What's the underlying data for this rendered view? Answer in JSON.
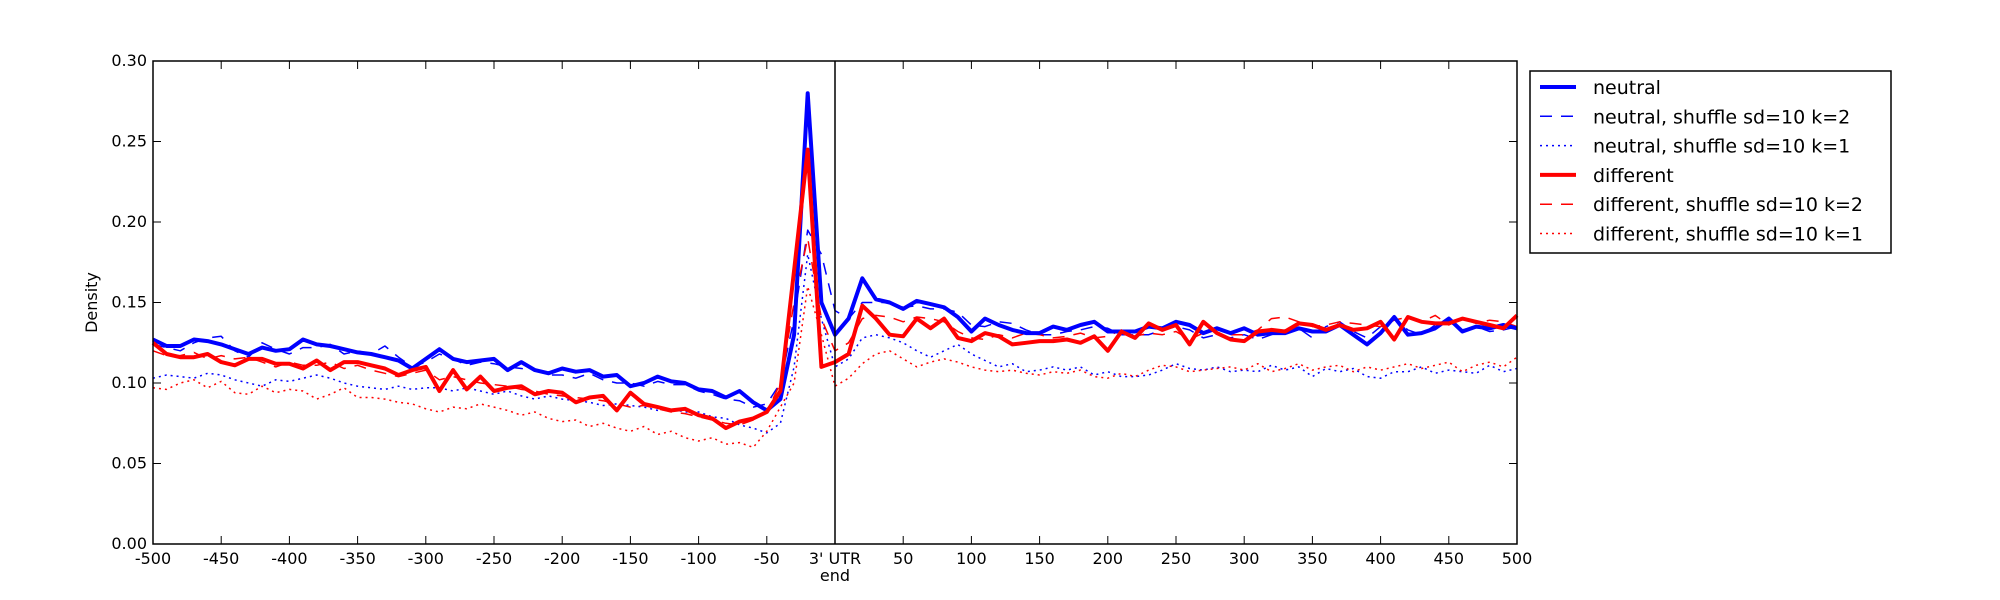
{
  "chart_data": {
    "type": "line",
    "title": "",
    "xlabel": "",
    "ylabel": "Density",
    "xlim": [
      -500,
      500
    ],
    "ylim": [
      0,
      0.3
    ],
    "grid": false,
    "legend_position": "outside-right-top",
    "xticks": [
      -500,
      -450,
      -400,
      -350,
      -300,
      -250,
      -200,
      -150,
      -100,
      -50,
      0,
      50,
      100,
      150,
      200,
      250,
      300,
      350,
      400,
      450,
      500
    ],
    "xtick_labels": [
      "-500",
      "-450",
      "-400",
      "-350",
      "-300",
      "-250",
      "-200",
      "-150",
      "-100",
      "-50",
      "",
      "50",
      "100",
      "150",
      "200",
      "250",
      "300",
      "350",
      "400",
      "450",
      "500"
    ],
    "yticks": [
      0,
      0.05,
      0.1,
      0.15,
      0.2,
      0.25,
      0.3
    ],
    "ytick_labels": [
      "0.00",
      "0.05",
      "0.10",
      "0.15",
      "0.20",
      "0.25",
      "0.30"
    ],
    "marker": {
      "x": 0,
      "label_line1": "3' UTR",
      "label_line2": "end"
    },
    "x": [
      -500,
      -490,
      -480,
      -470,
      -460,
      -450,
      -440,
      -430,
      -420,
      -410,
      -400,
      -390,
      -380,
      -370,
      -360,
      -350,
      -340,
      -330,
      -320,
      -310,
      -300,
      -290,
      -280,
      -270,
      -260,
      -250,
      -240,
      -230,
      -220,
      -210,
      -200,
      -190,
      -180,
      -170,
      -160,
      -150,
      -140,
      -130,
      -120,
      -110,
      -100,
      -90,
      -80,
      -70,
      -60,
      -50,
      -40,
      -30,
      -20,
      -10,
      0,
      10,
      20,
      30,
      40,
      50,
      60,
      70,
      80,
      90,
      100,
      110,
      120,
      130,
      140,
      150,
      160,
      170,
      180,
      190,
      200,
      210,
      220,
      230,
      240,
      250,
      260,
      270,
      280,
      290,
      300,
      310,
      320,
      330,
      340,
      350,
      360,
      370,
      380,
      390,
      400,
      410,
      420,
      430,
      440,
      450,
      460,
      470,
      480,
      490,
      500
    ],
    "series": [
      {
        "name": "neutral",
        "color": "#0000ff",
        "style": "solid",
        "width": 4,
        "values": [
          0.127,
          0.123,
          0.123,
          0.127,
          0.126,
          0.124,
          0.121,
          0.118,
          0.122,
          0.12,
          0.121,
          0.127,
          0.124,
          0.123,
          0.121,
          0.119,
          0.118,
          0.116,
          0.114,
          0.109,
          0.115,
          0.121,
          0.115,
          0.113,
          0.114,
          0.115,
          0.108,
          0.113,
          0.108,
          0.106,
          0.109,
          0.107,
          0.108,
          0.104,
          0.105,
          0.098,
          0.1,
          0.104,
          0.101,
          0.1,
          0.096,
          0.095,
          0.091,
          0.095,
          0.088,
          0.083,
          0.09,
          0.13,
          0.28,
          0.15,
          0.13,
          0.14,
          0.165,
          0.152,
          0.15,
          0.146,
          0.151,
          0.149,
          0.147,
          0.141,
          0.132,
          0.14,
          0.136,
          0.133,
          0.131,
          0.131,
          0.135,
          0.133,
          0.136,
          0.138,
          0.132,
          0.132,
          0.132,
          0.135,
          0.134,
          0.138,
          0.136,
          0.131,
          0.134,
          0.131,
          0.134,
          0.13,
          0.131,
          0.131,
          0.134,
          0.132,
          0.132,
          0.136,
          0.13,
          0.124,
          0.131,
          0.141,
          0.13,
          0.131,
          0.134,
          0.14,
          0.132,
          0.135,
          0.134,
          0.136,
          0.134
        ]
      },
      {
        "name": "neutral, shuffle sd=10 k=2",
        "color": "#0000ff",
        "style": "dashed",
        "width": 1.5,
        "values": [
          0.124,
          0.122,
          0.12,
          0.125,
          0.128,
          0.129,
          0.12,
          0.116,
          0.125,
          0.121,
          0.118,
          0.122,
          0.122,
          0.124,
          0.118,
          0.12,
          0.118,
          0.123,
          0.116,
          0.11,
          0.113,
          0.118,
          0.115,
          0.111,
          0.113,
          0.112,
          0.11,
          0.109,
          0.108,
          0.105,
          0.105,
          0.103,
          0.106,
          0.102,
          0.1,
          0.1,
          0.098,
          0.101,
          0.099,
          0.099,
          0.095,
          0.093,
          0.09,
          0.089,
          0.085,
          0.087,
          0.1,
          0.14,
          0.195,
          0.18,
          0.145,
          0.14,
          0.15,
          0.15,
          0.15,
          0.147,
          0.148,
          0.146,
          0.146,
          0.144,
          0.136,
          0.135,
          0.138,
          0.137,
          0.133,
          0.13,
          0.13,
          0.132,
          0.133,
          0.135,
          0.134,
          0.13,
          0.13,
          0.13,
          0.133,
          0.135,
          0.133,
          0.128,
          0.13,
          0.128,
          0.13,
          0.127,
          0.13,
          0.133,
          0.134,
          0.128,
          0.135,
          0.138,
          0.132,
          0.128,
          0.135,
          0.14,
          0.133,
          0.13,
          0.136,
          0.138,
          0.133,
          0.135,
          0.132,
          0.133,
          0.135
        ]
      },
      {
        "name": "neutral, shuffle sd=10 k=1",
        "color": "#0000ff",
        "style": "dotted",
        "width": 1.5,
        "values": [
          0.103,
          0.105,
          0.104,
          0.103,
          0.106,
          0.105,
          0.102,
          0.1,
          0.098,
          0.102,
          0.101,
          0.103,
          0.105,
          0.103,
          0.1,
          0.098,
          0.097,
          0.096,
          0.098,
          0.096,
          0.097,
          0.097,
          0.095,
          0.097,
          0.095,
          0.093,
          0.095,
          0.092,
          0.09,
          0.092,
          0.09,
          0.089,
          0.088,
          0.086,
          0.087,
          0.086,
          0.085,
          0.083,
          0.084,
          0.082,
          0.082,
          0.079,
          0.078,
          0.074,
          0.072,
          0.069,
          0.075,
          0.11,
          0.18,
          0.14,
          0.11,
          0.115,
          0.128,
          0.13,
          0.128,
          0.125,
          0.12,
          0.116,
          0.12,
          0.124,
          0.118,
          0.114,
          0.11,
          0.112,
          0.107,
          0.108,
          0.11,
          0.108,
          0.11,
          0.105,
          0.107,
          0.104,
          0.104,
          0.105,
          0.108,
          0.112,
          0.109,
          0.108,
          0.11,
          0.107,
          0.108,
          0.107,
          0.111,
          0.108,
          0.11,
          0.104,
          0.109,
          0.107,
          0.109,
          0.104,
          0.103,
          0.107,
          0.107,
          0.11,
          0.106,
          0.108,
          0.107,
          0.106,
          0.111,
          0.107,
          0.109
        ]
      },
      {
        "name": "different",
        "color": "#ff0000",
        "style": "solid",
        "width": 4,
        "values": [
          0.125,
          0.118,
          0.116,
          0.116,
          0.118,
          0.113,
          0.111,
          0.115,
          0.115,
          0.112,
          0.112,
          0.109,
          0.114,
          0.108,
          0.113,
          0.113,
          0.111,
          0.109,
          0.105,
          0.108,
          0.11,
          0.095,
          0.108,
          0.096,
          0.104,
          0.095,
          0.097,
          0.098,
          0.093,
          0.095,
          0.094,
          0.088,
          0.091,
          0.092,
          0.083,
          0.094,
          0.087,
          0.085,
          0.083,
          0.084,
          0.08,
          0.078,
          0.072,
          0.076,
          0.078,
          0.082,
          0.095,
          0.17,
          0.245,
          0.11,
          0.113,
          0.118,
          0.148,
          0.14,
          0.13,
          0.129,
          0.14,
          0.134,
          0.14,
          0.128,
          0.126,
          0.131,
          0.129,
          0.124,
          0.125,
          0.126,
          0.126,
          0.127,
          0.125,
          0.129,
          0.12,
          0.132,
          0.128,
          0.137,
          0.133,
          0.136,
          0.124,
          0.138,
          0.131,
          0.127,
          0.126,
          0.132,
          0.133,
          0.132,
          0.137,
          0.136,
          0.133,
          0.136,
          0.133,
          0.134,
          0.138,
          0.127,
          0.141,
          0.138,
          0.137,
          0.137,
          0.14,
          0.138,
          0.136,
          0.134,
          0.142
        ]
      },
      {
        "name": "different, shuffle sd=10 k=2",
        "color": "#ff0000",
        "style": "dashed",
        "width": 1.5,
        "values": [
          0.12,
          0.117,
          0.117,
          0.119,
          0.115,
          0.117,
          0.115,
          0.116,
          0.113,
          0.11,
          0.113,
          0.111,
          0.111,
          0.113,
          0.109,
          0.111,
          0.108,
          0.106,
          0.104,
          0.106,
          0.108,
          0.102,
          0.104,
          0.102,
          0.1,
          0.099,
          0.098,
          0.096,
          0.095,
          0.093,
          0.092,
          0.091,
          0.09,
          0.089,
          0.087,
          0.085,
          0.086,
          0.084,
          0.082,
          0.081,
          0.079,
          0.077,
          0.075,
          0.074,
          0.077,
          0.082,
          0.1,
          0.15,
          0.19,
          0.14,
          0.12,
          0.125,
          0.14,
          0.142,
          0.141,
          0.138,
          0.141,
          0.14,
          0.138,
          0.132,
          0.128,
          0.127,
          0.13,
          0.128,
          0.131,
          0.13,
          0.128,
          0.129,
          0.131,
          0.128,
          0.129,
          0.133,
          0.129,
          0.131,
          0.13,
          0.132,
          0.127,
          0.131,
          0.134,
          0.13,
          0.13,
          0.133,
          0.14,
          0.141,
          0.138,
          0.135,
          0.136,
          0.138,
          0.137,
          0.136,
          0.135,
          0.139,
          0.141,
          0.138,
          0.142,
          0.136,
          0.14,
          0.137,
          0.139,
          0.138,
          0.135
        ]
      },
      {
        "name": "different, shuffle sd=10 k=1",
        "color": "#ff0000",
        "style": "dotted",
        "width": 1.5,
        "values": [
          0.097,
          0.096,
          0.1,
          0.102,
          0.097,
          0.101,
          0.094,
          0.093,
          0.098,
          0.094,
          0.096,
          0.095,
          0.09,
          0.093,
          0.097,
          0.091,
          0.091,
          0.09,
          0.088,
          0.087,
          0.084,
          0.082,
          0.085,
          0.084,
          0.087,
          0.085,
          0.083,
          0.08,
          0.082,
          0.078,
          0.076,
          0.077,
          0.073,
          0.075,
          0.072,
          0.07,
          0.073,
          0.068,
          0.07,
          0.066,
          0.064,
          0.066,
          0.062,
          0.063,
          0.06,
          0.07,
          0.085,
          0.1,
          0.16,
          0.13,
          0.098,
          0.103,
          0.112,
          0.118,
          0.12,
          0.115,
          0.11,
          0.113,
          0.115,
          0.113,
          0.11,
          0.108,
          0.107,
          0.108,
          0.106,
          0.105,
          0.107,
          0.106,
          0.108,
          0.104,
          0.103,
          0.106,
          0.104,
          0.108,
          0.111,
          0.11,
          0.107,
          0.108,
          0.109,
          0.11,
          0.108,
          0.112,
          0.107,
          0.109,
          0.112,
          0.108,
          0.11,
          0.111,
          0.107,
          0.11,
          0.108,
          0.11,
          0.112,
          0.109,
          0.111,
          0.113,
          0.107,
          0.111,
          0.113,
          0.11,
          0.116
        ]
      }
    ]
  }
}
